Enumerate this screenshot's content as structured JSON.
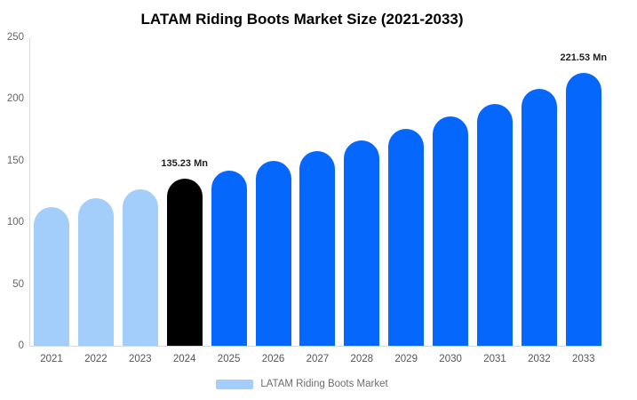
{
  "title": "LATAM Riding Boots Market Size (2021-2033)",
  "legend": {
    "label": "LATAM Riding Boots Market",
    "swatch_color": "#a3cdfa"
  },
  "colors": {
    "historical_bar": "#a3cdfa",
    "highlight_bar": "#000000",
    "forecast_bar": "#0667fd",
    "axis_line": "#d9d9d9",
    "y_tick_label": "#666666",
    "x_tick_label": "#555555",
    "annotation_text": "#1f1f1f",
    "background": "#ffffff"
  },
  "chart_data": {
    "type": "bar",
    "title": "LATAM Riding Boots Market Size (2021-2033)",
    "xlabel": "",
    "ylabel": "",
    "ylim": [
      0,
      250
    ],
    "grid": false,
    "legend_position": "bottom",
    "y_ticks": [
      0,
      50,
      100,
      150,
      200,
      250
    ],
    "categories": [
      "2021",
      "2022",
      "2023",
      "2024",
      "2025",
      "2026",
      "2027",
      "2028",
      "2029",
      "2030",
      "2031",
      "2032",
      "2033"
    ],
    "values": [
      112.5,
      119.5,
      126.5,
      135.23,
      142,
      149.5,
      157.5,
      166.5,
      176,
      186,
      196,
      208,
      221.53
    ],
    "bar_colors": [
      "#a3cdfa",
      "#a3cdfa",
      "#a3cdfa",
      "#000000",
      "#0667fd",
      "#0667fd",
      "#0667fd",
      "#0667fd",
      "#0667fd",
      "#0667fd",
      "#0667fd",
      "#0667fd",
      "#0667fd"
    ],
    "annotations": [
      {
        "category": "2024",
        "text": "135.23 Mn"
      },
      {
        "category": "2033",
        "text": "221.53 Mn"
      }
    ],
    "series_name": "LATAM Riding Boots Market"
  }
}
